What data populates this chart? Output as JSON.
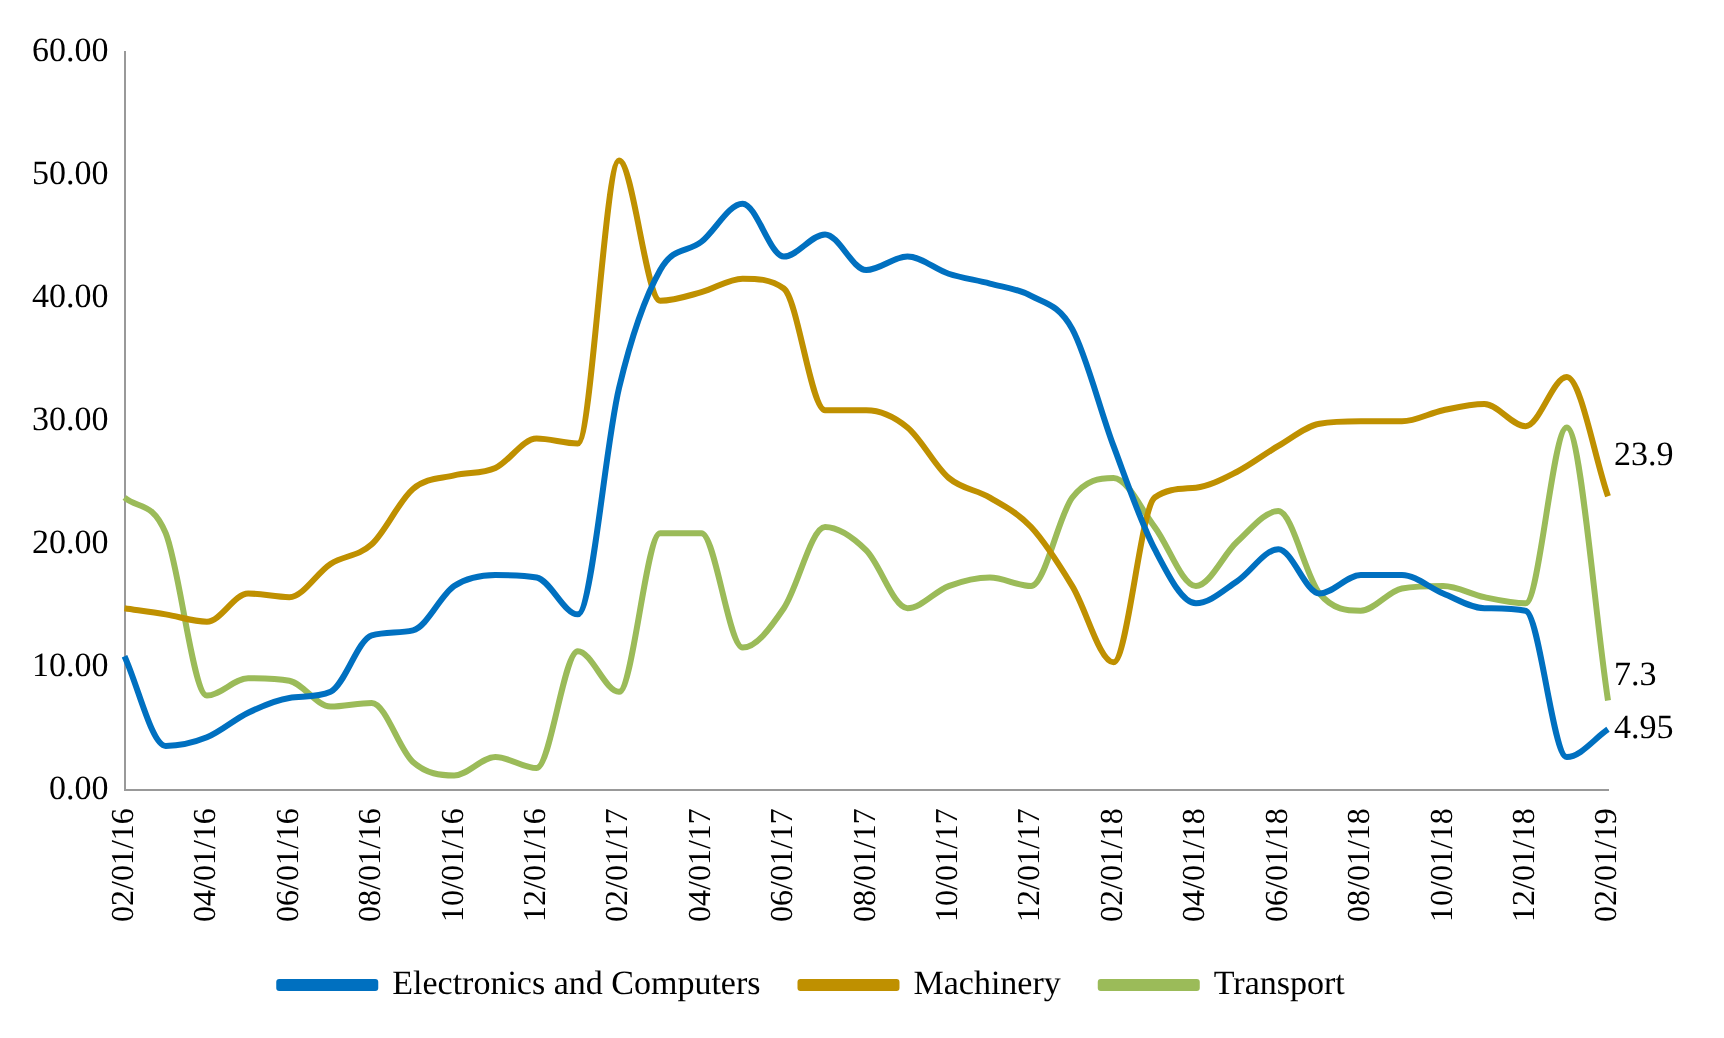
{
  "chart_data": {
    "type": "line",
    "categories": [
      "02/01/16",
      null,
      "04/01/16",
      null,
      "06/01/16",
      null,
      "08/01/16",
      null,
      "10/01/16",
      null,
      "12/01/16",
      null,
      "02/01/17",
      null,
      "04/01/17",
      null,
      "06/01/17",
      null,
      "08/01/17",
      null,
      "10/01/17",
      null,
      "12/01/17",
      null,
      "02/01/18",
      null,
      "04/01/18",
      null,
      "06/01/18",
      null,
      "08/01/18",
      null,
      "10/01/18",
      null,
      "12/01/18",
      null,
      "02/01/19"
    ],
    "series": [
      {
        "name": "Electronics and Computers",
        "color": "#0070c0",
        "values": [
          10.9,
          3.6,
          4.3,
          6.3,
          7.5,
          8.0,
          12.6,
          13.0,
          16.6,
          17.5,
          17.3,
          14.3,
          32.7,
          42.3,
          44.6,
          47.7,
          43.4,
          45.2,
          42.3,
          43.4,
          42.0,
          41.2,
          40.2,
          37.5,
          28.0,
          19.6,
          15.2,
          17.0,
          19.6,
          16.0,
          17.5,
          17.5,
          16.0,
          14.8,
          14.6,
          2.7,
          4.95
        ],
        "value_labels": [
          null,
          null,
          null,
          null,
          null,
          null,
          null,
          null,
          null,
          null,
          null,
          null,
          null,
          null,
          null,
          null,
          null,
          null,
          null,
          null,
          null,
          null,
          null,
          null,
          null,
          null,
          null,
          null,
          null,
          null,
          null,
          null,
          null,
          null,
          null,
          null,
          "4.95"
        ]
      },
      {
        "name": "Machinery",
        "color": "#bf9000",
        "values": [
          14.8,
          14.3,
          13.7,
          16.0,
          15.7,
          18.4,
          20.0,
          24.5,
          25.6,
          26.2,
          28.6,
          28.2,
          51.2,
          39.8,
          40.5,
          41.6,
          40.8,
          30.9,
          30.9,
          29.5,
          25.4,
          23.8,
          21.4,
          16.6,
          10.4,
          23.8,
          24.6,
          25.9,
          28.0,
          29.8,
          30.0,
          30.0,
          30.9,
          31.4,
          29.6,
          33.6,
          23.9
        ],
        "value_labels": [
          null,
          null,
          null,
          null,
          null,
          null,
          null,
          null,
          null,
          null,
          null,
          null,
          null,
          null,
          null,
          null,
          null,
          null,
          null,
          null,
          null,
          null,
          null,
          null,
          null,
          null,
          null,
          null,
          null,
          null,
          null,
          null,
          null,
          null,
          null,
          null,
          "23.9"
        ]
      },
      {
        "name": "Transport",
        "color": "#9bbb59",
        "values": [
          23.8,
          20.9,
          7.7,
          9.1,
          8.9,
          6.8,
          7.1,
          2.3,
          1.2,
          2.7,
          1.8,
          11.3,
          8.0,
          20.9,
          20.9,
          11.6,
          14.8,
          21.4,
          19.5,
          14.8,
          16.6,
          17.3,
          16.6,
          23.8,
          25.4,
          21.4,
          16.6,
          20.2,
          22.7,
          16.0,
          14.6,
          16.4,
          16.6,
          15.7,
          15.2,
          29.5,
          7.3
        ],
        "value_labels": [
          null,
          null,
          null,
          null,
          null,
          null,
          null,
          null,
          null,
          null,
          null,
          null,
          null,
          null,
          null,
          null,
          null,
          null,
          null,
          null,
          null,
          null,
          null,
          null,
          null,
          null,
          null,
          null,
          null,
          null,
          null,
          null,
          null,
          null,
          null,
          null,
          "7.3"
        ]
      }
    ],
    "ylim": [
      0,
      60
    ],
    "yticks": [
      {
        "value": 0,
        "label": "0.00"
      },
      {
        "value": 10,
        "label": "10.00"
      },
      {
        "value": 20,
        "label": "20.00"
      },
      {
        "value": 30,
        "label": "30.00"
      },
      {
        "value": 40,
        "label": "40.00"
      },
      {
        "value": 50,
        "label": "50.00"
      },
      {
        "value": 60,
        "label": "60.00"
      }
    ],
    "legend": "bottom",
    "marker": "none",
    "line_style": "solid"
  }
}
